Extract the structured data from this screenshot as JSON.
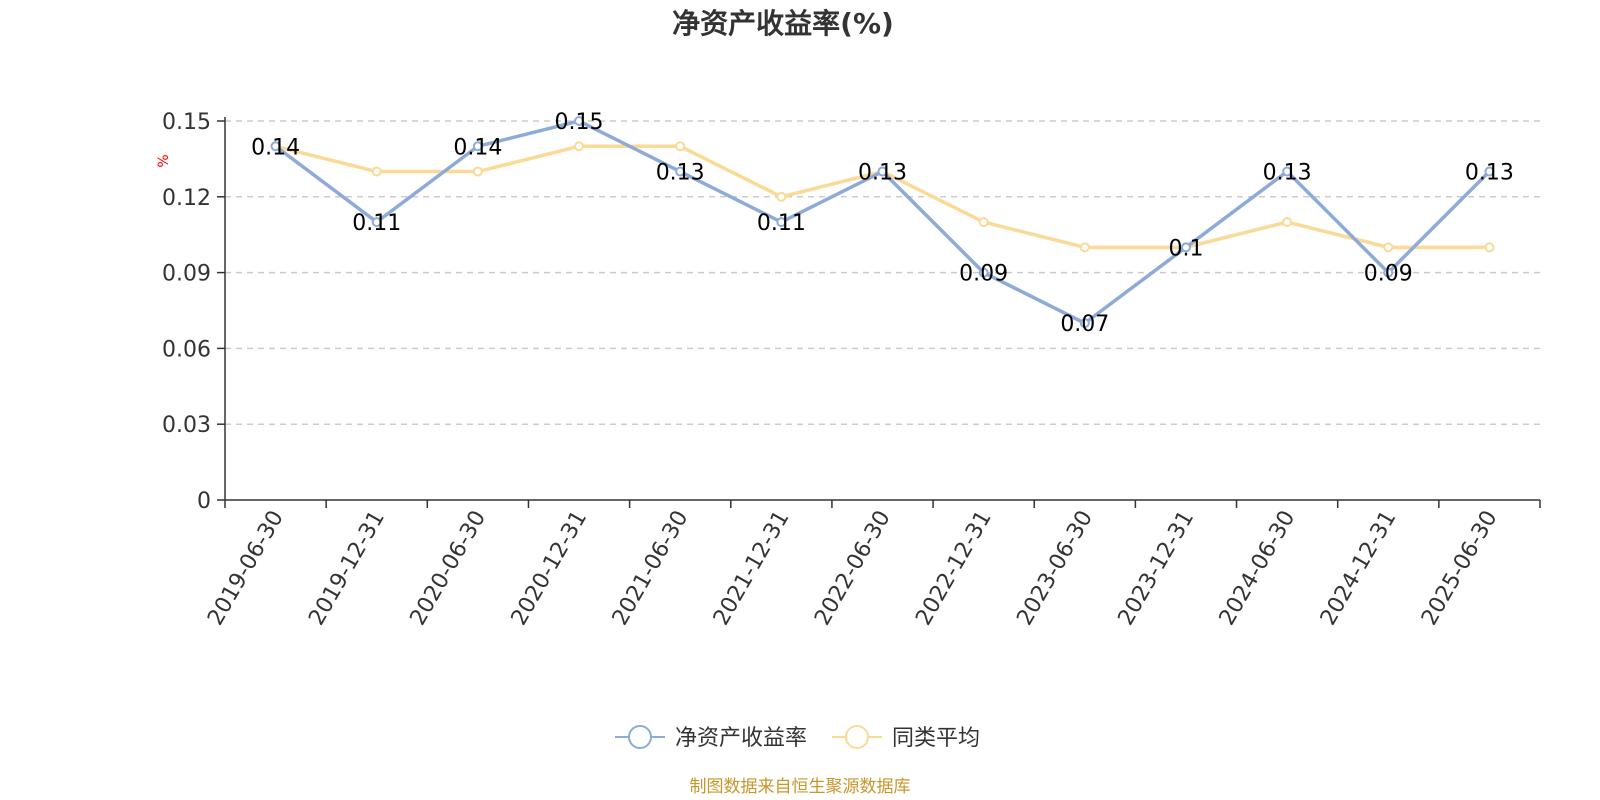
{
  "chart_data": {
    "type": "line",
    "title": "净资产收益率(%)",
    "ylabel": "%",
    "xlabel": "",
    "ylim": [
      0,
      0.15
    ],
    "yticks": [
      "0",
      "0.03",
      "0.06",
      "0.09",
      "0.12",
      "0.15"
    ],
    "categories": [
      "2019-06-30",
      "2019-12-31",
      "2020-06-30",
      "2020-12-31",
      "2021-06-30",
      "2021-12-31",
      "2022-06-30",
      "2022-12-31",
      "2023-06-30",
      "2023-12-31",
      "2024-06-30",
      "2024-12-31",
      "2025-06-30"
    ],
    "grid": true,
    "legend_position": "bottom",
    "series": [
      {
        "name": "净资产收益率",
        "color": "#8eaad8",
        "values": [
          0.14,
          0.11,
          0.14,
          0.15,
          0.13,
          0.11,
          0.13,
          0.09,
          0.07,
          0.1,
          0.13,
          0.09,
          0.13
        ],
        "labels": [
          "0.14",
          "0.11",
          "0.14",
          "0.15",
          "0.13",
          "0.11",
          "0.13",
          "0.09",
          "0.07",
          "0.1",
          "0.13",
          "0.09",
          "0.13"
        ]
      },
      {
        "name": "同类平均",
        "color": "#fbd996",
        "values": [
          0.14,
          0.13,
          0.13,
          0.14,
          0.14,
          0.12,
          0.13,
          0.11,
          0.1,
          0.1,
          0.11,
          0.1,
          0.1
        ]
      }
    ],
    "source": "制图数据来自恒生聚源数据库",
    "source_color": "#c8962b"
  }
}
